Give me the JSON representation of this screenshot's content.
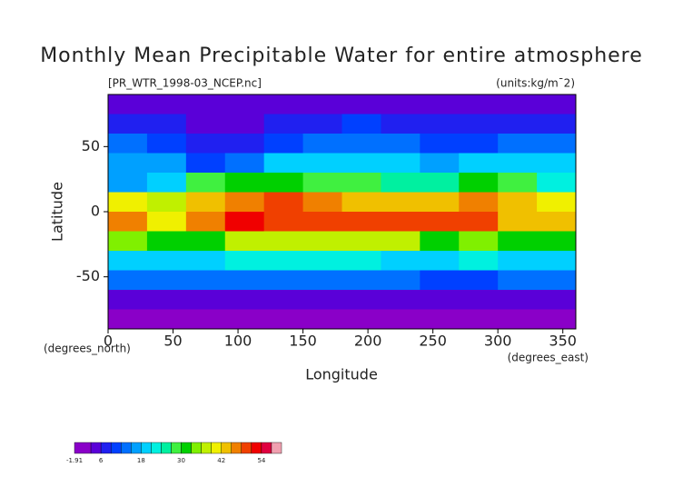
{
  "chart_data": {
    "type": "heatmap",
    "title": "Monthly Mean Precipitable Water for entire atmosphere",
    "subtitle": "[PR_WTR_1998-03_NCEP.nc]",
    "units_label": "(units:kg/m¯2)",
    "x_label": "Longitude",
    "y_label": "Latitude",
    "x_unit_label": "(degrees_east)",
    "y_unit_label": "(degrees_north)",
    "xlim": [
      0,
      360
    ],
    "ylim": [
      -90,
      90
    ],
    "xticks": [
      0,
      50,
      100,
      150,
      200,
      250,
      300,
      350
    ],
    "yticks": [
      -50,
      0,
      50
    ],
    "x": [
      15,
      45,
      75,
      105,
      135,
      165,
      195,
      225,
      255,
      285,
      315,
      345
    ],
    "y": [
      82.5,
      67.5,
      52.5,
      37.5,
      22.5,
      7.5,
      -7.5,
      -22.5,
      -37.5,
      -52.5,
      -67.5,
      -82.5
    ],
    "values": [
      [
        3,
        3,
        3,
        3,
        3,
        3,
        3,
        3,
        3,
        3,
        3,
        3
      ],
      [
        6,
        6,
        5,
        5,
        6,
        8,
        9,
        8,
        6,
        6,
        8,
        7
      ],
      [
        12,
        10,
        8,
        8,
        10,
        13,
        14,
        13,
        11,
        10,
        13,
        12
      ],
      [
        16,
        15,
        10,
        12,
        20,
        20,
        19,
        18,
        15,
        18,
        20,
        18
      ],
      [
        15,
        20,
        28,
        30,
        30,
        28,
        27,
        26,
        25,
        30,
        28,
        22
      ],
      [
        40,
        38,
        44,
        46,
        48,
        45,
        44,
        42,
        43,
        45,
        42,
        40
      ],
      [
        46,
        40,
        46,
        52,
        50,
        48,
        50,
        50,
        48,
        50,
        44,
        42
      ],
      [
        34,
        30,
        32,
        36,
        38,
        36,
        38,
        36,
        32,
        34,
        32,
        30
      ],
      [
        20,
        20,
        20,
        22,
        22,
        21,
        21,
        20,
        20,
        22,
        20,
        20
      ],
      [
        12,
        12,
        12,
        12,
        12,
        12,
        12,
        12,
        11,
        11,
        12,
        12
      ],
      [
        5,
        5,
        5,
        5,
        5,
        5,
        5,
        5,
        5,
        5,
        5,
        5
      ],
      [
        1,
        1,
        1,
        1,
        1,
        1,
        1,
        1,
        1,
        1,
        1,
        1
      ]
    ],
    "colorbar": {
      "levels": [
        -1.91,
        3,
        6,
        9,
        12,
        15,
        18,
        21,
        24,
        27,
        30,
        33,
        36,
        39,
        42,
        45,
        48,
        51,
        54,
        57,
        60
      ],
      "colors": [
        "#8a00c8",
        "#5a00d8",
        "#2020f0",
        "#0040ff",
        "#0070ff",
        "#00a0ff",
        "#00d0ff",
        "#00f0e0",
        "#00f0a0",
        "#40f040",
        "#00d000",
        "#80f000",
        "#c0f000",
        "#f0f000",
        "#f0c000",
        "#f08000",
        "#f04000",
        "#f00000",
        "#e00040",
        "#f0a0b0"
      ],
      "ticks": [
        -1.91,
        6,
        18,
        30,
        42,
        54
      ]
    }
  }
}
